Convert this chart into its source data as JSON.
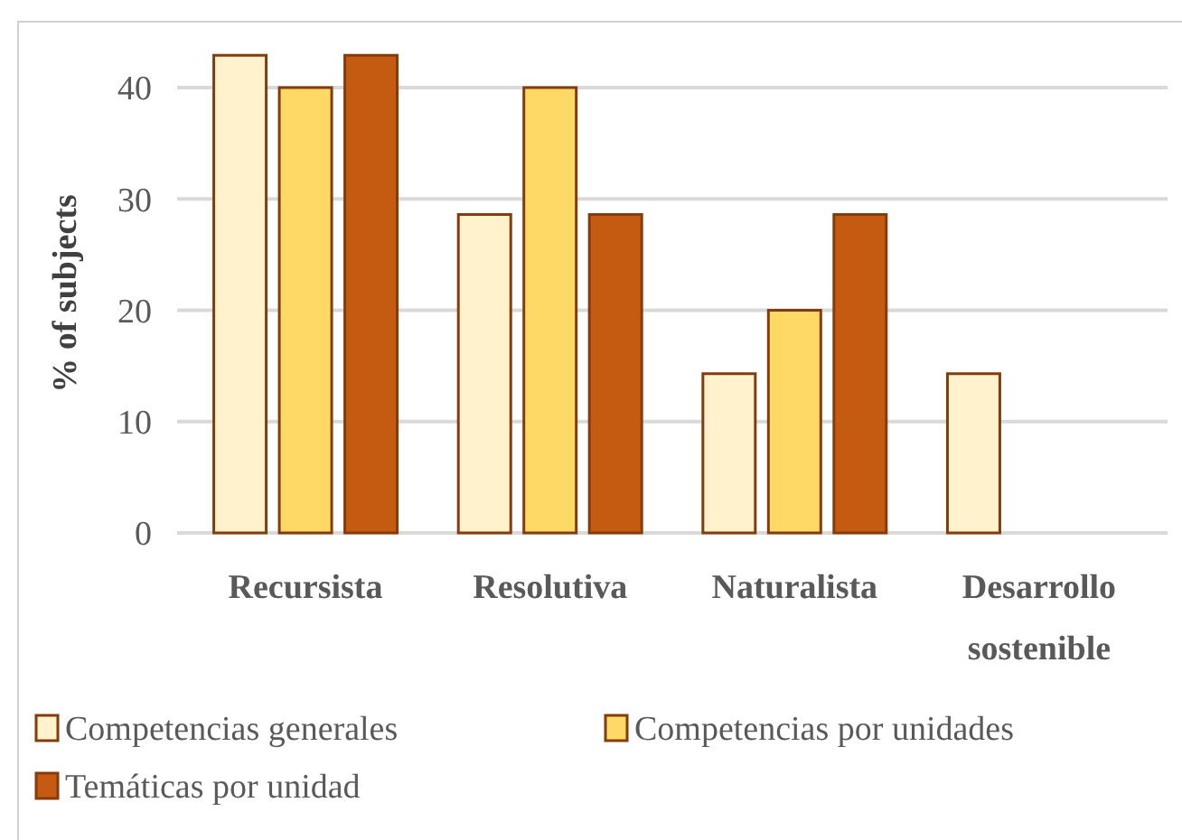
{
  "chart_data": {
    "type": "bar",
    "ylabel": "% of subjects",
    "categories": [
      "Recursista",
      "Resolutiva",
      "Naturalista",
      "Desarrollo sostenible"
    ],
    "series": [
      {
        "name": "Competencias generales",
        "color": "#fff2cc",
        "values": [
          42.9,
          28.6,
          14.3,
          14.3
        ]
      },
      {
        "name": "Competencias por unidades",
        "color": "#ffd966",
        "values": [
          40,
          40,
          20,
          null
        ]
      },
      {
        "name": "Temáticas por unidad",
        "color": "#c55a11",
        "values": [
          42.9,
          28.6,
          28.6,
          null
        ]
      }
    ],
    "ylim": [
      0,
      43
    ],
    "yticks": [
      0,
      10,
      20,
      30,
      40
    ],
    "grid": "y",
    "legend": "bottom"
  }
}
